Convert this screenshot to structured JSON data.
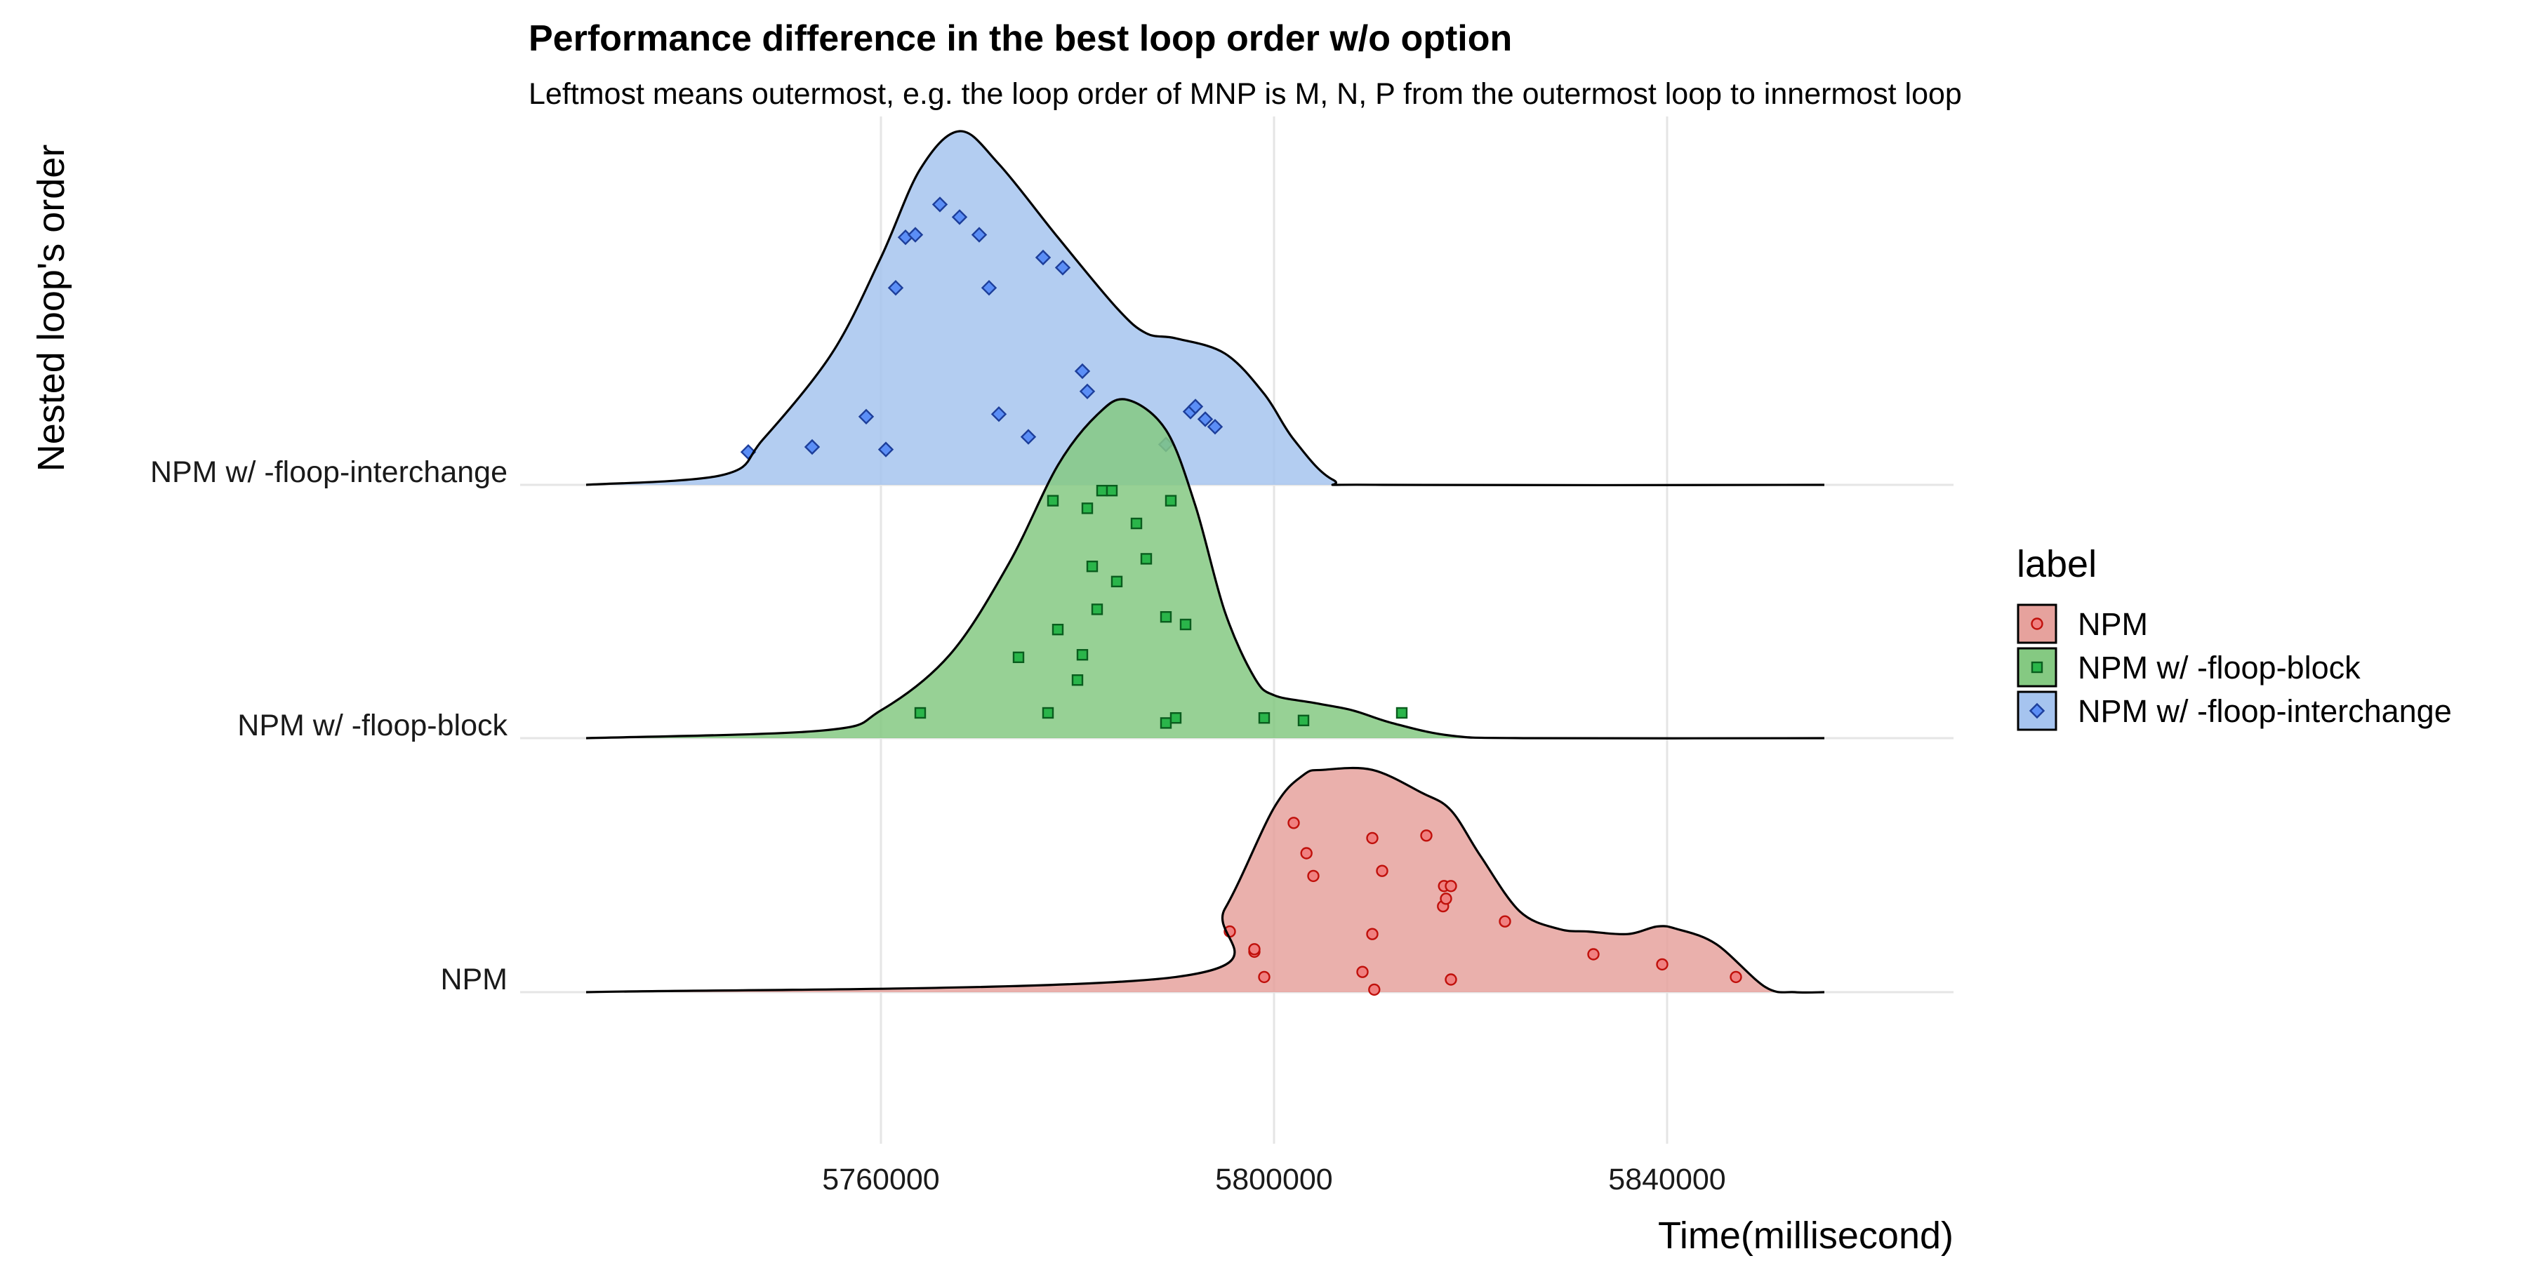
{
  "chart_data": {
    "type": "ridgeline",
    "title": "Performance difference in the best loop order w/o option",
    "subtitle": "Leftmost means outermost, e.g. the loop order of MNP is M, N, P from the outermost loop to innermost loop",
    "xlabel": "Time(millisecond)",
    "ylabel": "Nested loop's order",
    "xlim": [
      5730000,
      5860000
    ],
    "xticks": [
      5760000,
      5800000,
      5840000
    ],
    "xtick_labels": [
      "5760000",
      "5800000",
      "5840000"
    ],
    "categories": [
      "NPM",
      "NPM w/ -floop-block",
      "NPM w/ -floop-interchange"
    ],
    "grid": true,
    "legend": {
      "title": "label",
      "position": "right",
      "entries": [
        "NPM",
        "NPM w/ -floop-block",
        "NPM w/ -floop-interchange"
      ]
    },
    "series": [
      {
        "name": "NPM",
        "fill": "#e6a29d",
        "point_fill": "#f08080",
        "point_stroke": "#c0100b",
        "marker": "circle",
        "density": [
          [
            5730000,
            0
          ],
          [
            5790000,
            0.06
          ],
          [
            5795000,
            0.33
          ],
          [
            5800000,
            0.73
          ],
          [
            5803000,
            0.86
          ],
          [
            5805000,
            0.88
          ],
          [
            5810000,
            0.88
          ],
          [
            5815000,
            0.79
          ],
          [
            5818000,
            0.72
          ],
          [
            5821000,
            0.54
          ],
          [
            5825000,
            0.32
          ],
          [
            5829000,
            0.25
          ],
          [
            5832000,
            0.24
          ],
          [
            5836000,
            0.23
          ],
          [
            5839000,
            0.26
          ],
          [
            5841000,
            0.25
          ],
          [
            5845000,
            0.19
          ],
          [
            5850000,
            0.02
          ],
          [
            5853000,
            0
          ],
          [
            5856000,
            0
          ]
        ],
        "points": [
          [
            5799000,
            0.06
          ],
          [
            5798000,
            0.16
          ],
          [
            5809000,
            0.08
          ],
          [
            5795500,
            0.24
          ],
          [
            5810000,
            0.23
          ],
          [
            5798000,
            0.17
          ],
          [
            5810200,
            0.01
          ],
          [
            5818000,
            0.05
          ],
          [
            5817200,
            0.34
          ],
          [
            5817500,
            0.37
          ],
          [
            5817300,
            0.42
          ],
          [
            5818000,
            0.42
          ],
          [
            5823500,
            0.28
          ],
          [
            5804000,
            0.46
          ],
          [
            5803300,
            0.55
          ],
          [
            5811000,
            0.48
          ],
          [
            5810000,
            0.61
          ],
          [
            5815500,
            0.62
          ],
          [
            5832500,
            0.15
          ],
          [
            5847000,
            0.06
          ],
          [
            5839500,
            0.11
          ],
          [
            5802000,
            0.67
          ]
        ]
      },
      {
        "name": "NPM w/ -floop-block",
        "fill": "#85c982",
        "point_fill": "#2ab54a",
        "point_stroke": "#0a5d1e",
        "marker": "square",
        "density": [
          [
            5730000,
            0
          ],
          [
            5754000,
            0.03
          ],
          [
            5760000,
            0.11
          ],
          [
            5767000,
            0.33
          ],
          [
            5773000,
            0.69
          ],
          [
            5778000,
            1.08
          ],
          [
            5782000,
            1.28
          ],
          [
            5785000,
            1.34
          ],
          [
            5789000,
            1.22
          ],
          [
            5792000,
            0.92
          ],
          [
            5795000,
            0.5
          ],
          [
            5798000,
            0.24
          ],
          [
            5800000,
            0.17
          ],
          [
            5804000,
            0.14
          ],
          [
            5808000,
            0.11
          ],
          [
            5812000,
            0.06
          ],
          [
            5818000,
            0.01
          ],
          [
            5826000,
            0
          ],
          [
            5856000,
            0
          ]
        ],
        "points": [
          [
            5764000,
            0.1
          ],
          [
            5777000,
            0.1
          ],
          [
            5780000,
            0.23
          ],
          [
            5780500,
            0.33
          ],
          [
            5778000,
            0.43
          ],
          [
            5789000,
            0.48
          ],
          [
            5791000,
            0.45
          ],
          [
            5774000,
            0.32
          ],
          [
            5782000,
            0.51
          ],
          [
            5787000,
            0.71
          ],
          [
            5781500,
            0.68
          ],
          [
            5784000,
            0.62
          ],
          [
            5789000,
            0.06
          ],
          [
            5790000,
            0.08
          ],
          [
            5799000,
            0.08
          ],
          [
            5813000,
            0.1
          ],
          [
            5803000,
            0.07
          ],
          [
            5777500,
            0.94
          ],
          [
            5782500,
            0.98
          ],
          [
            5789500,
            0.94
          ],
          [
            5786000,
            0.85
          ],
          [
            5781000,
            0.91
          ],
          [
            5783500,
            0.98
          ]
        ]
      },
      {
        "name": "NPM w/ -floop-interchange",
        "fill": "#a6c4ef",
        "point_fill": "#5b8ef6",
        "point_stroke": "#1d3e9a",
        "marker": "diamond",
        "density": [
          [
            5730000,
            0
          ],
          [
            5744000,
            0.04
          ],
          [
            5748000,
            0.18
          ],
          [
            5755000,
            0.52
          ],
          [
            5760000,
            0.9
          ],
          [
            5764000,
            1.25
          ],
          [
            5768000,
            1.4
          ],
          [
            5772000,
            1.27
          ],
          [
            5778000,
            0.98
          ],
          [
            5784000,
            0.7
          ],
          [
            5787000,
            0.6
          ],
          [
            5790000,
            0.58
          ],
          [
            5795000,
            0.52
          ],
          [
            5799000,
            0.36
          ],
          [
            5802000,
            0.18
          ],
          [
            5806000,
            0.02
          ],
          [
            5811000,
            0
          ],
          [
            5856000,
            0
          ]
        ],
        "points": [
          [
            5760500,
            0.14
          ],
          [
            5761500,
            0.78
          ],
          [
            5762500,
            0.98
          ],
          [
            5763500,
            0.99
          ],
          [
            5766000,
            1.11
          ],
          [
            5768000,
            1.06
          ],
          [
            5770000,
            0.99
          ],
          [
            5771000,
            0.78
          ],
          [
            5772000,
            0.28
          ],
          [
            5775000,
            0.19
          ],
          [
            5776500,
            0.9
          ],
          [
            5778500,
            0.86
          ],
          [
            5780500,
            0.45
          ],
          [
            5781000,
            0.37
          ],
          [
            5789000,
            0.16
          ],
          [
            5791500,
            0.29
          ],
          [
            5792000,
            0.31
          ],
          [
            5793000,
            0.26
          ],
          [
            5794000,
            0.23
          ],
          [
            5753000,
            0.15
          ],
          [
            5746500,
            0.13
          ],
          [
            5758500,
            0.27
          ]
        ]
      }
    ]
  }
}
